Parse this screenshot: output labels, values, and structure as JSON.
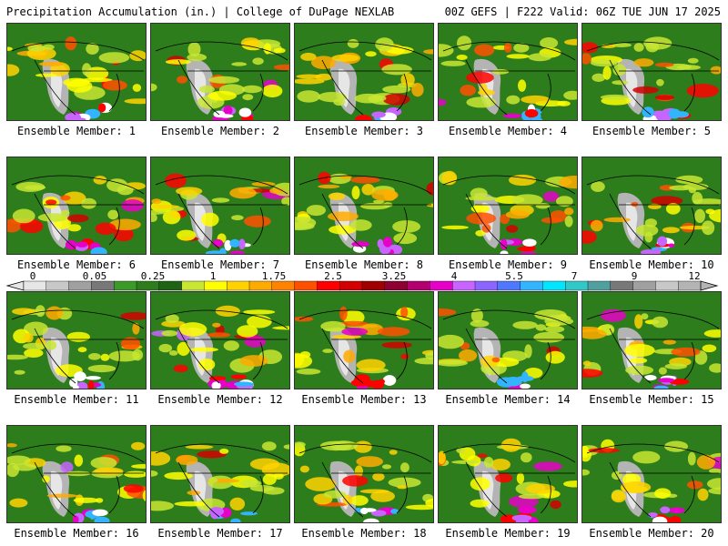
{
  "header": {
    "left": "Precipitation Accumulation (in.) | College of DuPage NEXLAB",
    "right": "00Z GEFS | F222 Valid: 06Z TUE JUN 17 2025"
  },
  "members": [
    "Ensemble Member: 1",
    "Ensemble Member: 2",
    "Ensemble Member: 3",
    "Ensemble Member: 4",
    "Ensemble Member: 5",
    "Ensemble Member: 6",
    "Ensemble Member: 7",
    "Ensemble Member: 8",
    "Ensemble Member: 9",
    "Ensemble Member: 10",
    "Ensemble Member: 11",
    "Ensemble Member: 12",
    "Ensemble Member: 13",
    "Ensemble Member: 14",
    "Ensemble Member: 15",
    "Ensemble Member: 16",
    "Ensemble Member: 17",
    "Ensemble Member: 18",
    "Ensemble Member: 19",
    "Ensemble Member: 20"
  ],
  "colorbar": {
    "ticks": [
      "0",
      "0.05",
      "0.25",
      "1",
      "1.75",
      "2.5",
      "3.25",
      "4",
      "5.5",
      "7",
      "9",
      "12"
    ],
    "colors": [
      "#e6e6e6",
      "#c8c8c8",
      "#a0a0a0",
      "#787878",
      "#3c9a28",
      "#2e7d1c",
      "#1f6414",
      "#c8e632",
      "#ffff00",
      "#ffd200",
      "#ffaa00",
      "#ff8200",
      "#ff5000",
      "#ff0000",
      "#d20000",
      "#a00000",
      "#8c0032",
      "#b4006e",
      "#e600c8",
      "#c864ff",
      "#8c64ff",
      "#5078ff",
      "#32b4ff",
      "#00e6ff",
      "#32c8c8",
      "#50a0a0",
      "#787878",
      "#a0a0a0",
      "#c8c8c8",
      "#b4b4b4"
    ]
  }
}
